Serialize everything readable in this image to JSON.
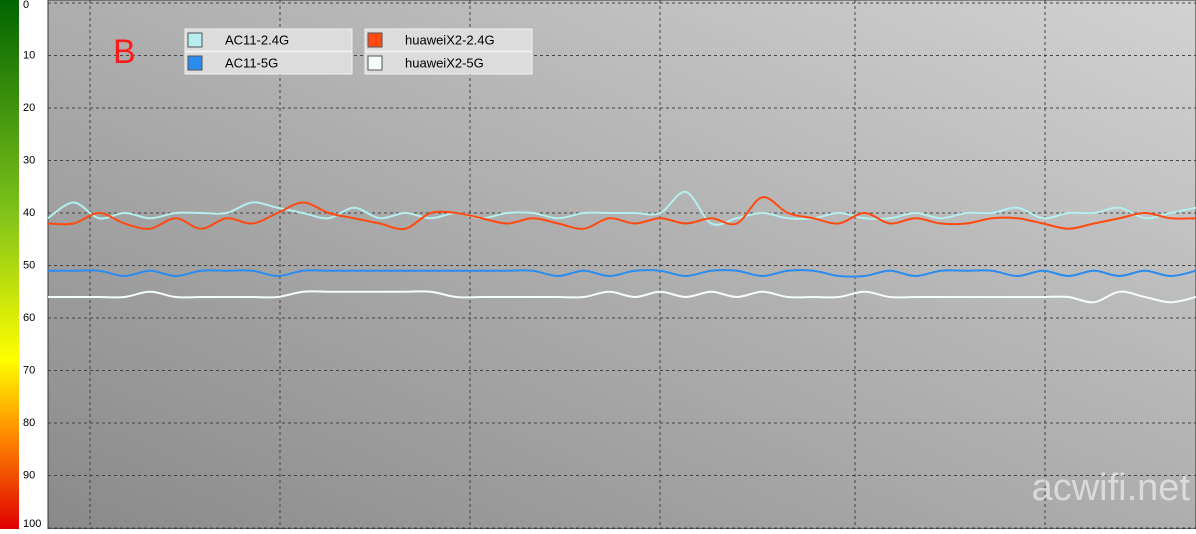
{
  "chart_data": {
    "type": "line",
    "label": "B",
    "watermark": "acwifi.net",
    "ylim": [
      0,
      100
    ],
    "yticks": [
      0,
      10,
      20,
      30,
      40,
      50,
      60,
      70,
      80,
      90,
      100
    ],
    "y_inverted": true,
    "grid": true,
    "legend": "top-left",
    "series": [
      {
        "name": "AC11-2.4G",
        "color": "#b4eeee",
        "values": [
          41,
          38,
          41,
          40,
          41,
          40,
          40,
          40,
          38,
          39,
          40,
          41,
          39,
          41,
          40,
          41,
          40,
          41,
          40,
          40,
          41,
          40,
          40,
          40,
          40,
          36,
          42,
          41,
          40,
          41,
          41,
          40,
          41,
          41,
          40,
          41,
          40,
          40,
          39,
          41,
          40,
          40,
          39,
          41,
          40,
          39
        ]
      },
      {
        "name": "AC11-5G",
        "color": "#2b8cf0",
        "values": [
          51,
          51,
          51,
          52,
          51,
          52,
          51,
          51,
          51,
          52,
          51,
          51,
          51,
          51,
          51,
          51,
          51,
          51,
          51,
          51,
          52,
          51,
          52,
          51,
          51,
          52,
          51,
          51,
          52,
          51,
          51,
          52,
          52,
          51,
          52,
          51,
          51,
          51,
          52,
          51,
          52,
          51,
          52,
          51,
          52,
          51
        ]
      },
      {
        "name": "huaweiX2-2.4G",
        "color": "#ff4a12",
        "values": [
          42,
          42,
          40,
          42,
          43,
          41,
          43,
          41,
          42,
          40,
          38,
          40,
          41,
          42,
          43,
          40,
          40,
          41,
          42,
          41,
          42,
          43,
          41,
          42,
          41,
          42,
          41,
          42,
          37,
          40,
          41,
          42,
          40,
          42,
          41,
          42,
          42,
          41,
          41,
          42,
          43,
          42,
          41,
          40,
          41,
          41
        ]
      },
      {
        "name": "huaweiX2-5G",
        "color": "#f4fcfc",
        "values": [
          56,
          56,
          56,
          56,
          55,
          56,
          56,
          56,
          56,
          56,
          55,
          55,
          55,
          55,
          55,
          55,
          56,
          56,
          56,
          56,
          56,
          56,
          55,
          56,
          55,
          56,
          55,
          56,
          55,
          56,
          56,
          56,
          55,
          56,
          56,
          56,
          56,
          56,
          56,
          56,
          56,
          57,
          55,
          56,
          57,
          56
        ]
      }
    ]
  }
}
